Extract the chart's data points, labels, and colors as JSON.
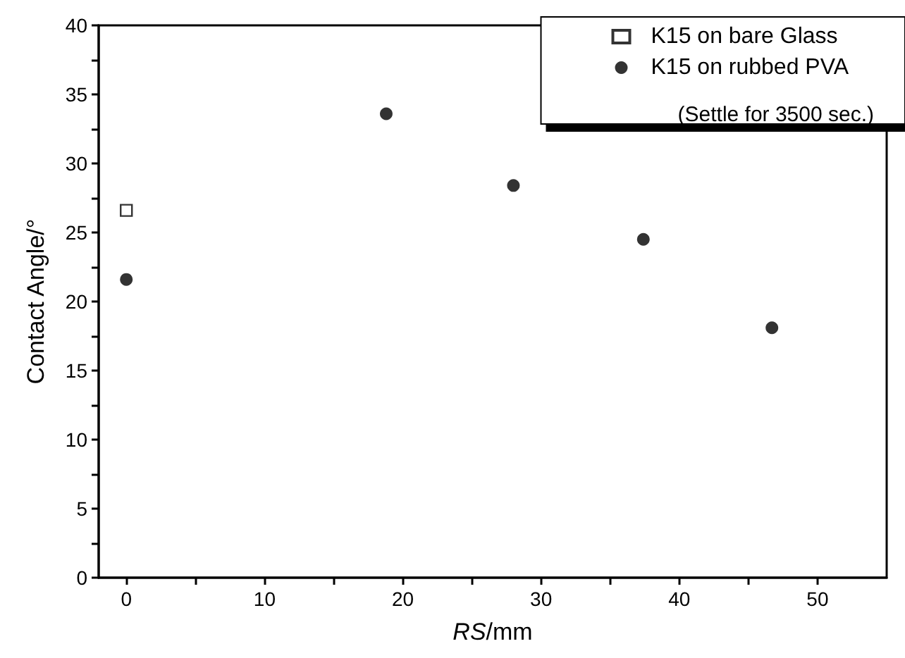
{
  "chart_data": {
    "type": "scatter",
    "xlabel": "RS/mm",
    "ylabel": "Contact Angle/°",
    "xlim": [
      -2,
      55
    ],
    "ylim": [
      0,
      40
    ],
    "xticks": [
      0,
      {
        "value": 5,
        "label": null
      },
      10,
      {
        "value": 15,
        "label": null
      },
      20,
      {
        "value": 25,
        "label": null
      },
      30,
      {
        "value": 35,
        "label": null
      },
      40,
      {
        "value": 45,
        "label": null
      },
      50
    ],
    "yticks": [
      0,
      {
        "value": 2.5,
        "label": null
      },
      5,
      {
        "value": 7.5,
        "label": null
      },
      10,
      {
        "value": 12.5,
        "label": null
      },
      15,
      {
        "value": 17.5,
        "label": null
      },
      20,
      {
        "value": 22.5,
        "label": null
      },
      25,
      {
        "value": 27.5,
        "label": null
      },
      30,
      {
        "value": 32.5,
        "label": null
      },
      35,
      {
        "value": 37.5,
        "label": null
      },
      40
    ],
    "series": [
      {
        "name": "K15 on bare Glass",
        "color": "#000000",
        "marker": "square",
        "x": [
          0
        ],
        "values": [
          26.6
        ]
      },
      {
        "name": "K15 on rubbed PVA",
        "color": "#000000",
        "marker": "circle",
        "x": [
          0,
          18.8,
          28.0,
          37.4,
          46.7
        ],
        "values": [
          21.6,
          33.6,
          28.4,
          24.5,
          18.1
        ]
      }
    ],
    "annotations": [
      "(Settle for 3500 sec.)"
    ],
    "legend": "top right",
    "grid": false
  }
}
